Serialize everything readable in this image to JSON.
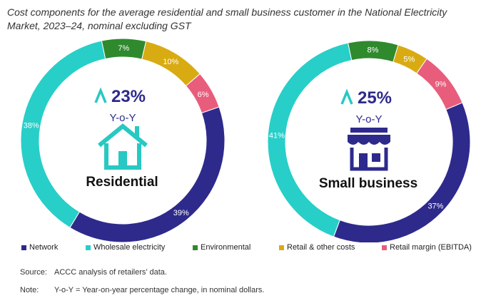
{
  "title": "Cost components for the average residential and small business customer in the National Electricity Market, 2023–24, nominal excluding GST",
  "colors": {
    "Network": "#2e2a8c",
    "Wholesale electricity": "#27cfc8",
    "Environmental": "#2f8a2e",
    "Retail & other costs": "#d9ab13",
    "Retail margin (EBITDA)": "#e85d7c",
    "center_text": "#2e2a8c",
    "icon": "#27c9c2"
  },
  "chart_data": [
    {
      "type": "pie",
      "variant": "donut",
      "name": "Residential",
      "change_value": "23%",
      "change_label": "Y-o-Y",
      "icon": "house-icon",
      "slices": [
        {
          "category": "Network",
          "value": 39,
          "label": "39%"
        },
        {
          "category": "Wholesale electricity",
          "value": 38,
          "label": "38%"
        },
        {
          "category": "Environmental",
          "value": 7,
          "label": "7%"
        },
        {
          "category": "Retail & other costs",
          "value": 10,
          "label": "10%"
        },
        {
          "category": "Retail margin (EBITDA)",
          "value": 6,
          "label": "6%"
        }
      ]
    },
    {
      "type": "pie",
      "variant": "donut",
      "name": "Small business",
      "change_value": "25%",
      "change_label": "Y-o-Y",
      "icon": "shop-icon",
      "slices": [
        {
          "category": "Network",
          "value": 37,
          "label": "37%"
        },
        {
          "category": "Wholesale electricity",
          "value": 41,
          "label": "41%"
        },
        {
          "category": "Environmental",
          "value": 8,
          "label": "8%"
        },
        {
          "category": "Retail & other costs",
          "value": 5,
          "label": "5%"
        },
        {
          "category": "Retail margin (EBITDA)",
          "value": 9,
          "label": "9%"
        }
      ]
    }
  ],
  "legend": [
    "Network",
    "Wholesale electricity",
    "Environmental",
    "Retail & other costs",
    "Retail margin (EBITDA)"
  ],
  "notes": {
    "source_label": "Source:",
    "source_text": "ACCC analysis of retailers’ data.",
    "note_label": "Note:",
    "note_text": "Y-o-Y = Year-on-year percentage change, in nominal dollars."
  }
}
